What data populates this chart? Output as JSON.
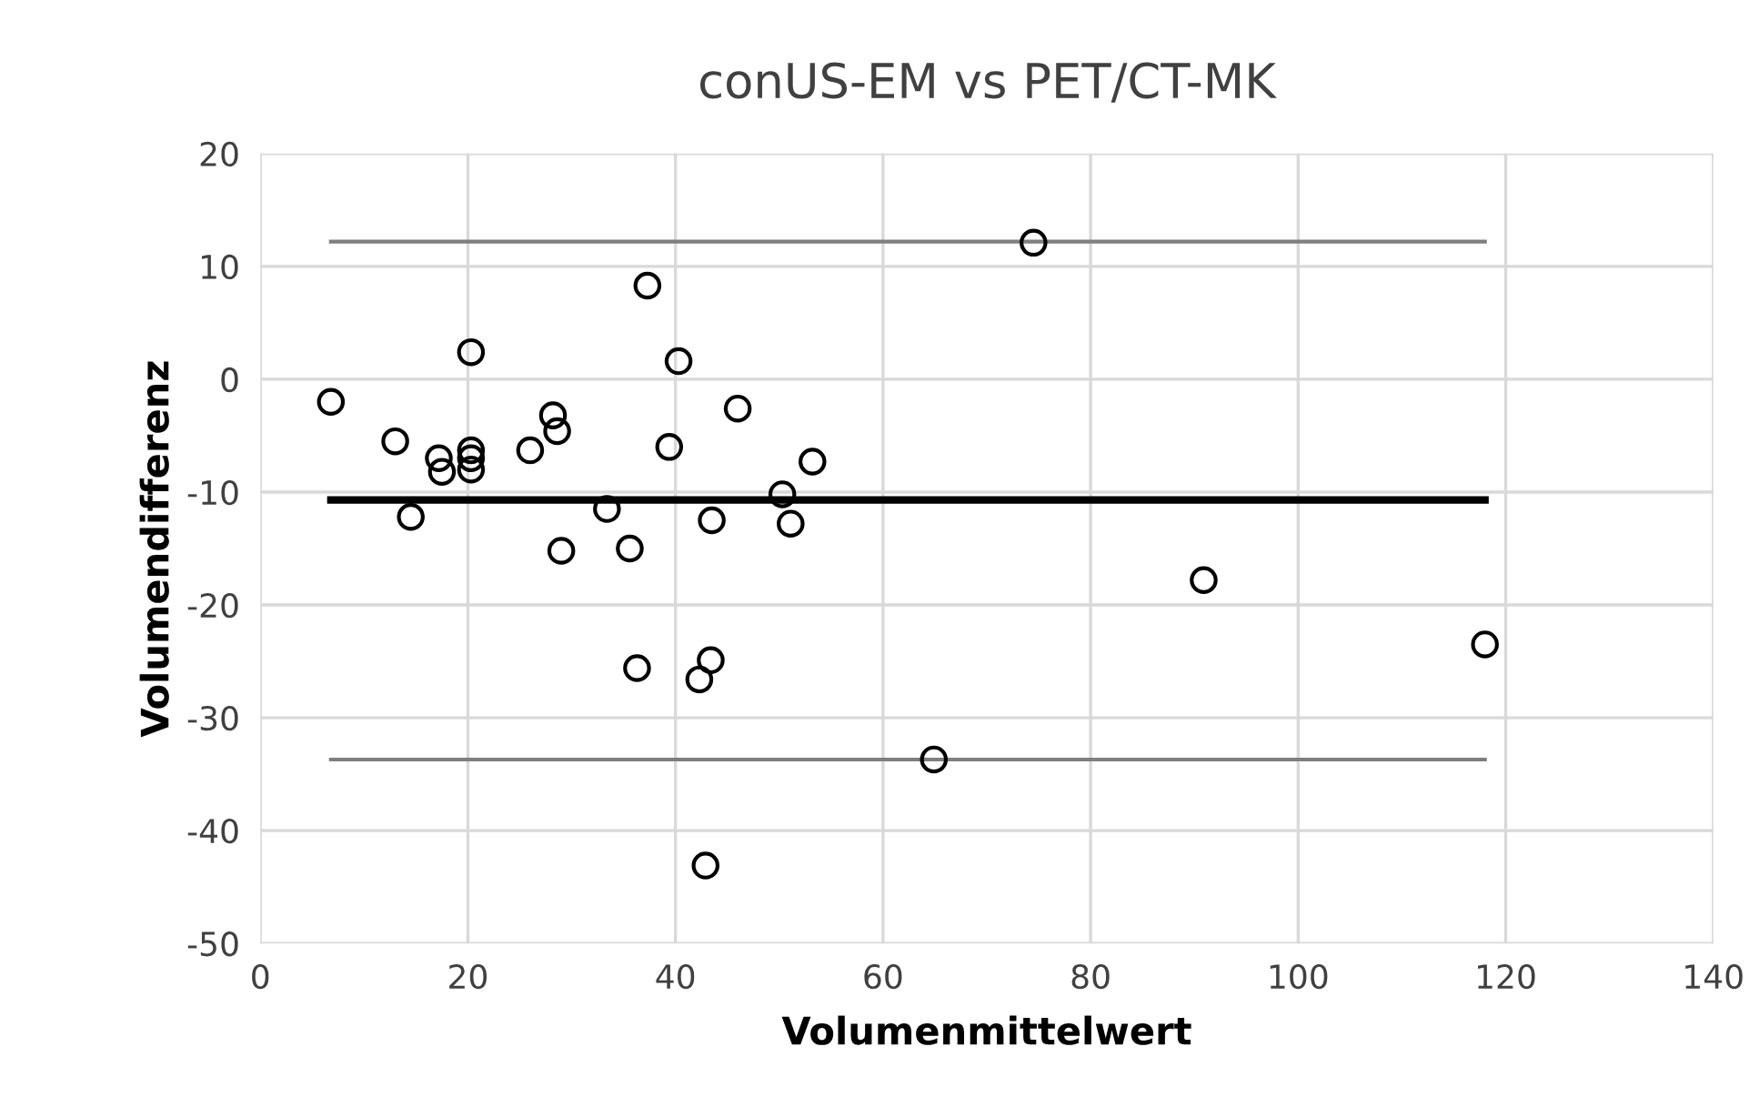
{
  "chart_data": {
    "type": "scatter",
    "title": "conUS-EM vs PET/CT-MK",
    "xlabel": "Volumenmittelwert",
    "ylabel": "Volumendifferenz",
    "xlim": [
      0,
      140
    ],
    "xticks": [
      0,
      20,
      40,
      60,
      80,
      100,
      120,
      140
    ],
    "ylim": [
      -50,
      20
    ],
    "yticks": [
      -50,
      -40,
      -30,
      -20,
      -10,
      0,
      10,
      20
    ],
    "grid": true,
    "legend": false,
    "series": [
      {
        "color": "#000000",
        "marker": "circle",
        "x": [
          6.8,
          13,
          14.5,
          17.2,
          17.5,
          20.3,
          20.3,
          20.3,
          20.3,
          26,
          28.2,
          28.6,
          29,
          33.4,
          35.6,
          36.3,
          37.3,
          39.4,
          40.3,
          42.3,
          42.9,
          43.4,
          43.5,
          46,
          50.3,
          51.1,
          53.2,
          64.9,
          74.5,
          90.9,
          118
        ],
        "values": [
          -2,
          -5.5,
          -12.2,
          -7,
          -8.2,
          2.4,
          -6.3,
          -7,
          -8,
          -6.3,
          -3.2,
          -4.6,
          -15.2,
          -11.5,
          -15,
          -25.6,
          8.3,
          -6,
          1.6,
          -26.6,
          -43.1,
          -24.9,
          -12.5,
          -2.6,
          -10.2,
          -12.8,
          -7.3,
          -33.7,
          12.1,
          -17.8,
          -23.5
        ]
      },
      {
        "type": "line",
        "color": "#7f7f7f",
        "x": [
          6.8,
          118
        ],
        "values": [
          12.2,
          12.2
        ]
      },
      {
        "type": "line",
        "color": "#000000",
        "x": [
          6.8,
          118
        ],
        "values": [
          -10.7,
          -10.7
        ]
      },
      {
        "type": "line",
        "color": "#7f7f7f",
        "x": [
          6.8,
          118
        ],
        "values": [
          -33.7,
          -33.7
        ]
      }
    ]
  }
}
